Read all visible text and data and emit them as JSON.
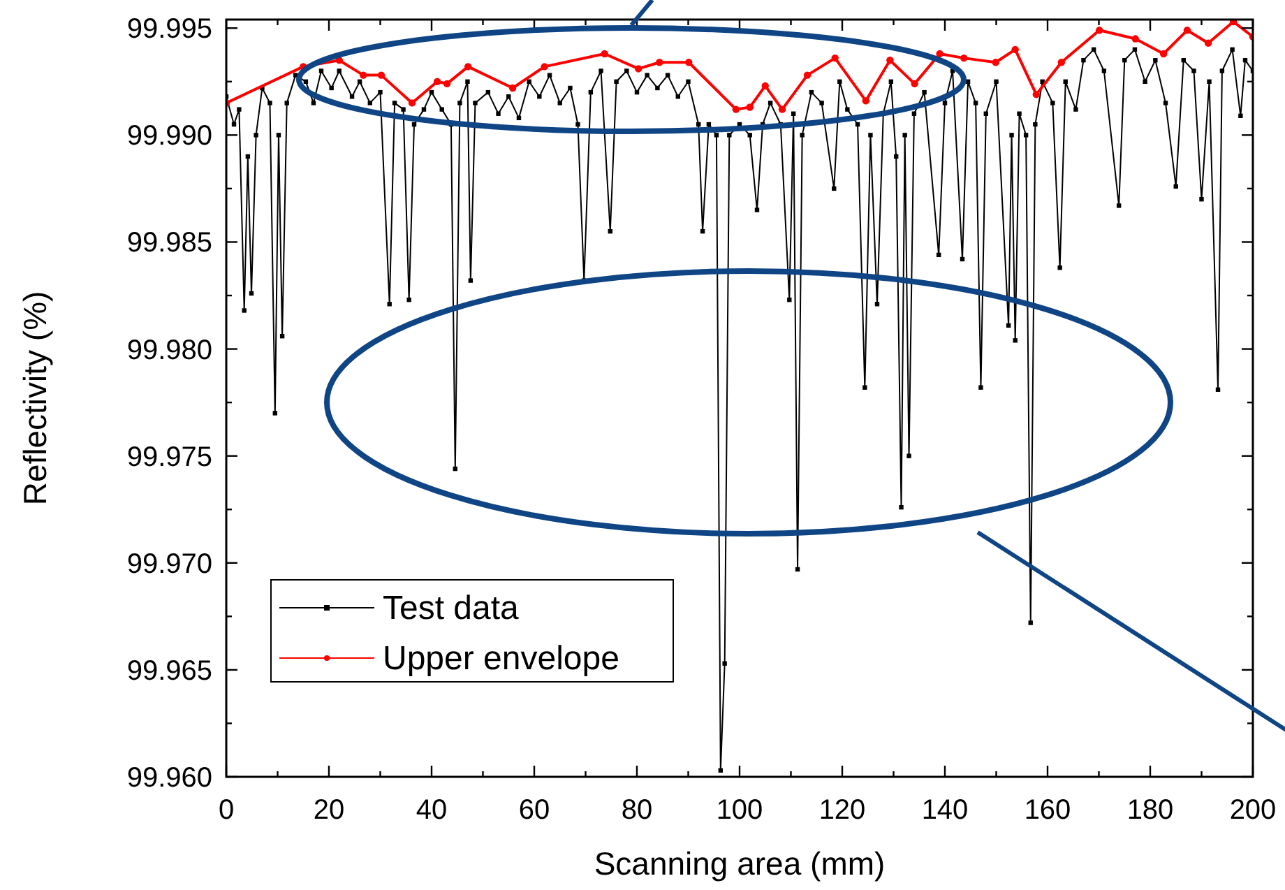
{
  "chart_data": {
    "type": "line",
    "xlabel": "Scanning area (mm)",
    "ylabel": "Reflectivity (%)",
    "xlim": [
      0,
      200
    ],
    "ylim": [
      99.96,
      99.9954
    ],
    "xticks": [
      0,
      {
        "value": 10,
        "label": null
      },
      20,
      {
        "value": 30,
        "label": null
      },
      40,
      {
        "value": 50,
        "label": null
      },
      60,
      {
        "value": 70,
        "label": null
      },
      80,
      {
        "value": 90,
        "label": null
      },
      100,
      {
        "value": 110,
        "label": null
      },
      120,
      {
        "value": 130,
        "label": null
      },
      140,
      {
        "value": 150,
        "label": null
      },
      160,
      {
        "value": 170,
        "label": null
      },
      180,
      {
        "value": 190,
        "label": null
      },
      200
    ],
    "yticks": [
      {
        "value": 99.96,
        "label": "99.960"
      },
      {
        "value": 99.9625,
        "label": null
      },
      {
        "value": 99.965,
        "label": "99.965"
      },
      {
        "value": 99.9675,
        "label": null
      },
      {
        "value": 99.97,
        "label": "99.970"
      },
      {
        "value": 99.9725,
        "label": null
      },
      {
        "value": 99.975,
        "label": "99.975"
      },
      {
        "value": 99.9775,
        "label": null
      },
      {
        "value": 99.98,
        "label": "99.980"
      },
      {
        "value": 99.9825,
        "label": null
      },
      {
        "value": 99.985,
        "label": "99.985"
      },
      {
        "value": 99.9875,
        "label": null
      },
      {
        "value": 99.99,
        "label": "99.990"
      },
      {
        "value": 99.9925,
        "label": null
      },
      {
        "value": 99.995,
        "label": "99.995"
      }
    ],
    "legend": "bottom left",
    "grid": false,
    "line_style": "solid",
    "series": [
      {
        "name": "Test data",
        "color": "#000000",
        "marker": "square",
        "x": [
          0,
          1.5,
          2.5,
          3.5,
          4.2,
          4.9,
          5.8,
          7,
          8.5,
          9.5,
          10.2,
          10.9,
          11.8,
          13.5,
          15.5,
          17,
          18.5,
          20.5,
          22,
          24.5,
          26,
          28,
          30,
          31.8,
          32.8,
          34.5,
          35.6,
          36.6,
          38.5,
          40,
          42,
          43.8,
          44.6,
          45.5,
          47,
          47.6,
          48.5,
          51,
          53,
          55,
          57,
          59,
          61,
          63,
          65,
          67,
          68.5,
          69.7,
          71,
          73,
          74.8,
          76,
          78,
          80,
          82,
          84,
          86,
          88,
          90,
          92,
          92.8,
          94,
          95.5,
          96.3,
          97.1,
          98,
          100,
          102,
          103.4,
          104.5,
          106,
          108,
          109.7,
          110.5,
          111.3,
          112.2,
          114,
          116,
          118.4,
          119.5,
          121,
          123,
          124.4,
          125.5,
          126.8,
          128,
          129.5,
          130.5,
          131.5,
          132.2,
          133,
          134,
          136,
          138.8,
          140,
          141.5,
          143.4,
          144.5,
          146,
          147,
          148,
          150,
          152.4,
          153,
          153.7,
          154.5,
          155.8,
          156.7,
          157.6,
          159,
          161,
          162.4,
          163.5,
          165.5,
          167,
          169,
          171,
          173.9,
          175,
          177,
          179,
          181,
          183,
          185,
          186.5,
          188.5,
          190,
          191.5,
          193.2,
          194,
          196,
          197.6,
          198.5,
          200
        ],
        "values": [
          99.9918,
          99.9905,
          99.9912,
          99.9818,
          99.989,
          99.9826,
          99.99,
          99.9922,
          99.9915,
          99.977,
          99.99,
          99.9806,
          99.9915,
          99.9928,
          99.9925,
          99.9915,
          99.993,
          99.9922,
          99.993,
          99.9918,
          99.9925,
          99.9915,
          99.992,
          99.9821,
          99.9915,
          99.9912,
          99.9823,
          99.9905,
          99.9912,
          99.992,
          99.9912,
          99.9905,
          99.9744,
          99.9915,
          99.9925,
          99.9832,
          99.9915,
          99.992,
          99.991,
          99.9918,
          99.9908,
          99.9925,
          99.9918,
          99.9928,
          99.9915,
          99.9922,
          99.9905,
          99.9832,
          99.992,
          99.993,
          99.9855,
          99.9925,
          99.993,
          99.992,
          99.9928,
          99.9922,
          99.9928,
          99.9918,
          99.9925,
          99.9905,
          99.9855,
          99.9905,
          99.99,
          99.9603,
          99.9653,
          99.99,
          99.9905,
          99.99,
          99.9865,
          99.9905,
          99.9915,
          99.9905,
          99.9823,
          99.991,
          99.9697,
          99.99,
          99.992,
          99.9915,
          99.9875,
          99.9925,
          99.9912,
          99.9905,
          99.9782,
          99.99,
          99.9821,
          99.991,
          99.9925,
          99.989,
          99.9726,
          99.99,
          99.975,
          99.991,
          99.992,
          99.9844,
          99.9915,
          99.993,
          99.9842,
          99.9925,
          99.9915,
          99.9782,
          99.991,
          99.9925,
          99.9811,
          99.99,
          99.9804,
          99.991,
          99.99,
          99.9672,
          99.9905,
          99.9925,
          99.9915,
          99.9838,
          99.9925,
          99.9912,
          99.9935,
          99.994,
          99.993,
          99.9867,
          99.9935,
          99.994,
          99.9925,
          99.9935,
          99.9915,
          99.9876,
          99.9935,
          99.993,
          99.987,
          99.9925,
          99.9781,
          99.993,
          99.994,
          99.9909,
          99.9935,
          99.993
        ]
      },
      {
        "name": "Upper envelope",
        "color": "#ff0000",
        "marker": "circle",
        "x": [
          0,
          15,
          22,
          26.7,
          30.2,
          36.2,
          41.1,
          43,
          47.1,
          55.8,
          62,
          73.7,
          80.3,
          84.4,
          90.1,
          99.3,
          102,
          105,
          108.3,
          113.2,
          118.6,
          124.6,
          129.3,
          134.1,
          139,
          143.7,
          149.9,
          153.7,
          157.8,
          162.7,
          170.1,
          177.1,
          182.6,
          187.2,
          191.3,
          196.2,
          200
        ],
        "values": [
          99.9915,
          99.9932,
          99.9935,
          99.9928,
          99.9928,
          99.9915,
          99.9925,
          99.9924,
          99.9932,
          99.9922,
          99.9932,
          99.9938,
          99.9931,
          99.9934,
          99.9934,
          99.9912,
          99.9913,
          99.9923,
          99.9912,
          99.9928,
          99.9936,
          99.9916,
          99.9935,
          99.9924,
          99.9938,
          99.9936,
          99.9934,
          99.994,
          99.9919,
          99.9934,
          99.9949,
          99.9945,
          99.9938,
          99.9949,
          99.9943,
          99.9953,
          99.9946
        ]
      }
    ]
  }
}
